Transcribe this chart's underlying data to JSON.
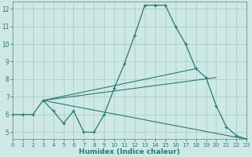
{
  "x": [
    0,
    1,
    2,
    3,
    4,
    5,
    6,
    7,
    8,
    9,
    10,
    11,
    12,
    13,
    14,
    15,
    16,
    17,
    18,
    19,
    20,
    21,
    22,
    23
  ],
  "main_y": [
    6.0,
    6.0,
    6.0,
    6.8,
    6.2,
    5.5,
    6.2,
    5.0,
    5.0,
    6.0,
    7.5,
    8.9,
    10.5,
    12.2,
    12.2,
    12.2,
    11.0,
    10.0,
    8.6,
    8.1,
    6.5,
    5.3,
    4.8,
    4.6
  ],
  "trend1_x": [
    3,
    23
  ],
  "trend1_y": [
    6.8,
    4.6
  ],
  "trend2_x": [
    3,
    18
  ],
  "trend2_y": [
    6.8,
    8.6
  ],
  "trend3_x": [
    3,
    20
  ],
  "trend3_y": [
    6.8,
    8.1
  ],
  "color": "#2a7a70",
  "bg_color": "#cde8e5",
  "grid_color": "#aacfcc",
  "xlabel": "Humidex (Indice chaleur)",
  "xlim": [
    0,
    23
  ],
  "ylim": [
    4.6,
    12.4
  ],
  "yticks": [
    5,
    6,
    7,
    8,
    9,
    10,
    11,
    12
  ],
  "xticks": [
    0,
    1,
    2,
    3,
    4,
    5,
    6,
    7,
    8,
    9,
    10,
    11,
    12,
    13,
    14,
    15,
    16,
    17,
    18,
    19,
    20,
    21,
    22,
    23
  ]
}
